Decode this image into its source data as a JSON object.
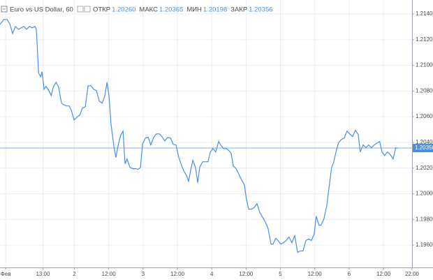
{
  "chart_data": {
    "type": "line",
    "title": "Euro vs US Dollar, 60",
    "ohlc": [
      {
        "name": "ОТКР",
        "value": "1.20260"
      },
      {
        "name": "МАКС",
        "value": "1.20365"
      },
      {
        "name": "МИН",
        "value": "1.20198"
      },
      {
        "name": "ЗАКР",
        "value": "1.20356"
      }
    ],
    "last_price": {
      "value": 1.20356,
      "label": "1.20356"
    },
    "grid": true,
    "xlim": [
      -2,
      142
    ],
    "xticks": [
      {
        "value": 0,
        "label": "Фев"
      },
      {
        "value": 13,
        "label": "13:00"
      },
      {
        "value": 24,
        "label": "2"
      },
      {
        "value": 36,
        "label": "12:00"
      },
      {
        "value": 48,
        "label": "3"
      },
      {
        "value": 60,
        "label": "12:00"
      },
      {
        "value": 72,
        "label": "4"
      },
      {
        "value": 84,
        "label": "12:00"
      },
      {
        "value": 96,
        "label": "5"
      },
      {
        "value": 108,
        "label": "12:00"
      },
      {
        "value": 120,
        "label": "6"
      },
      {
        "value": 132,
        "label": "12:00"
      },
      {
        "value": 142,
        "label": "22:00"
      }
    ],
    "ylim": [
      1.19426,
      1.21509
    ],
    "yticks": [
      {
        "value": 1.196,
        "label": "1.19600"
      },
      {
        "value": 1.198,
        "label": "1.19800"
      },
      {
        "value": 1.2,
        "label": "1.20000"
      },
      {
        "value": 1.202,
        "label": "1.20200"
      },
      {
        "value": 1.204,
        "label": "1.20400"
      },
      {
        "value": 1.206,
        "label": "1.20600"
      },
      {
        "value": 1.208,
        "label": "1.20800"
      },
      {
        "value": 1.21,
        "label": "1.21000"
      },
      {
        "value": 1.212,
        "label": "1.21200"
      },
      {
        "value": 1.214,
        "label": "1.21400"
      }
    ],
    "series": [
      {
        "color": "#4a8fe0",
        "x": [
          -2.0,
          -0.7,
          0.5,
          1.5,
          2.4,
          3.4,
          4.4,
          5.4,
          6.3,
          7.3,
          8.3,
          9.3,
          10.2,
          10.7,
          11.5,
          12.2,
          12.7,
          13.4,
          14.1,
          15.1,
          15.9,
          16.6,
          17.6,
          18.5,
          19.5,
          20.2,
          21.2,
          22.2,
          22.9,
          23.9,
          24.9,
          25.9,
          26.8,
          27.8,
          28.8,
          29.8,
          30.7,
          31.7,
          32.7,
          33.7,
          34.6,
          35.4,
          36.1,
          36.8,
          37.8,
          38.5,
          39.3,
          40.2,
          41.0,
          41.7,
          42.4,
          43.4,
          44.4,
          45.4,
          46.3,
          47.1,
          47.8,
          48.8,
          49.8,
          50.7,
          51.7,
          52.7,
          53.7,
          54.6,
          55.6,
          56.6,
          57.6,
          58.5,
          59.5,
          60.5,
          61.5,
          62.2,
          63.2,
          63.9,
          64.6,
          65.4,
          66.3,
          67.1,
          67.8,
          68.8,
          69.8,
          70.7,
          71.5,
          72.4,
          73.4,
          74.4,
          75.1,
          76.1,
          77.1,
          78.0,
          78.8,
          79.5,
          80.5,
          81.5,
          82.4,
          83.4,
          84.1,
          84.9,
          85.9,
          86.8,
          87.8,
          88.8,
          89.8,
          90.7,
          91.7,
          92.7,
          93.4,
          94.4,
          95.1,
          96.1,
          97.1,
          98.0,
          99.0,
          100.0,
          101.0,
          102.0,
          102.9,
          103.9,
          104.9,
          105.9,
          106.8,
          107.8,
          108.5,
          109.5,
          110.2,
          111.2,
          112.2,
          112.9,
          113.9,
          114.6,
          115.6,
          116.3,
          117.3,
          118.3,
          119.3,
          120.2,
          121.2,
          122.2,
          123.2,
          123.9,
          124.9,
          125.9,
          126.8,
          127.8,
          128.8,
          129.8,
          130.7,
          131.5,
          132.4,
          133.4,
          134.4,
          135.4,
          136.3,
          137.1
        ],
        "values": [
          1.21319,
          1.21357,
          1.21357,
          1.21319,
          1.21248,
          1.21303,
          1.21281,
          1.21292,
          1.21303,
          1.21281,
          1.21303,
          1.21292,
          1.21303,
          1.21281,
          1.20939,
          1.20912,
          1.2095,
          1.20814,
          1.20836,
          1.20803,
          1.20765,
          1.2083,
          1.20868,
          1.2083,
          1.20705,
          1.20694,
          1.20684,
          1.20684,
          1.20651,
          1.20575,
          1.20597,
          1.20613,
          1.20667,
          1.20678,
          1.20841,
          1.20841,
          1.20814,
          1.20803,
          1.20722,
          1.20705,
          1.2076,
          1.20868,
          1.2076,
          1.20542,
          1.20369,
          1.20282,
          1.2038,
          1.20456,
          1.20488,
          1.20233,
          1.20271,
          1.20206,
          1.20195,
          1.20195,
          1.2019,
          1.20206,
          1.20385,
          1.20434,
          1.20439,
          1.2038,
          1.20439,
          1.20466,
          1.20466,
          1.20445,
          1.20412,
          1.20439,
          1.20434,
          1.20385,
          1.2038,
          1.20282,
          1.20217,
          1.20179,
          1.20141,
          1.20097,
          1.20179,
          1.2026,
          1.20206,
          1.20086,
          1.20206,
          1.20249,
          1.20249,
          1.20249,
          1.20325,
          1.20352,
          1.20325,
          1.20407,
          1.2038,
          1.20352,
          1.20352,
          1.20336,
          1.20314,
          1.20217,
          1.20195,
          1.20151,
          1.20108,
          1.2007,
          1.19961,
          1.1988,
          1.1988,
          1.19891,
          1.19923,
          1.19853,
          1.19815,
          1.19782,
          1.19728,
          1.19608,
          1.19608,
          1.19652,
          1.19636,
          1.19608,
          1.19619,
          1.19636,
          1.19663,
          1.19619,
          1.19674,
          1.19543,
          1.19554,
          1.19554,
          1.19636,
          1.19647,
          1.19636,
          1.19685,
          1.19826,
          1.19755,
          1.19755,
          1.19804,
          1.19907,
          1.20032,
          1.20206,
          1.20244,
          1.20342,
          1.20396,
          1.20423,
          1.20434,
          1.20488,
          1.20466,
          1.20445,
          1.20494,
          1.20461,
          1.20325,
          1.2038,
          1.20358,
          1.2038,
          1.20358,
          1.2038,
          1.20396,
          1.20407,
          1.20325,
          1.20298,
          1.20325,
          1.20304,
          1.20271,
          1.20358,
          1.20356
        ]
      }
    ]
  }
}
